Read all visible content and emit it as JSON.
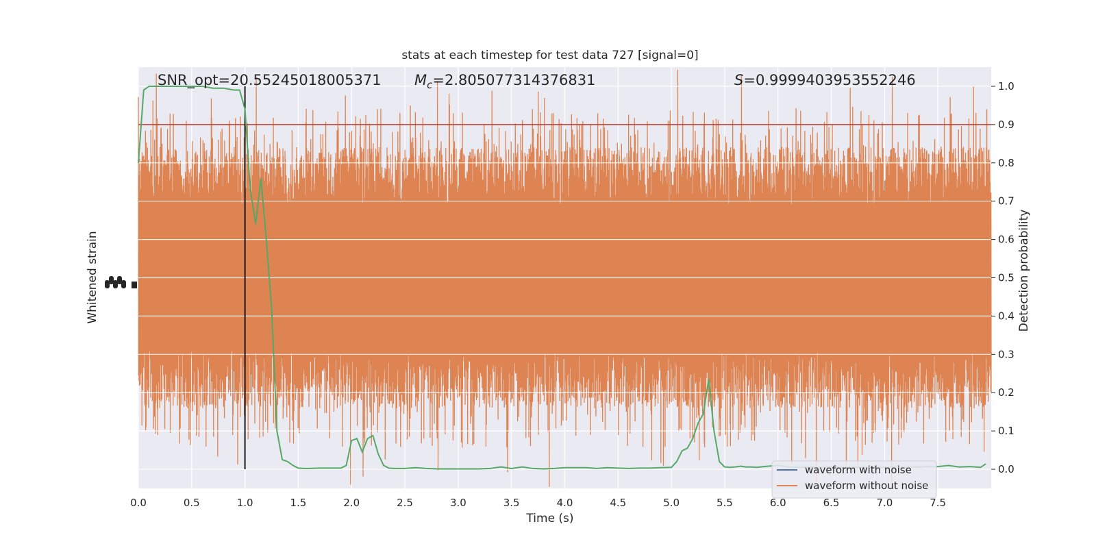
{
  "chart_data": {
    "type": "line",
    "title": "stats at each timestep for test data 727 [signal=0]",
    "xlabel": "Time (s)",
    "ylabel_left": "Whitened strain",
    "ylabel_right": "Detection probability",
    "xlim": [
      0,
      8
    ],
    "ylim_right": [
      -0.05,
      1.05
    ],
    "ylim_left": [
      -1,
      1
    ],
    "x_ticks": [
      0.0,
      0.5,
      1.0,
      1.5,
      2.0,
      2.5,
      3.0,
      3.5,
      4.0,
      4.5,
      5.0,
      5.5,
      6.0,
      6.5,
      7.0,
      7.5
    ],
    "x_tick_labels": [
      "0.0",
      "0.5",
      "1.0",
      "1.5",
      "2.0",
      "2.5",
      "3.0",
      "3.5",
      "4.0",
      "4.5",
      "5.0",
      "5.5",
      "6.0",
      "6.5",
      "7.0",
      "7.5"
    ],
    "y_right_ticks": [
      0.0,
      0.1,
      0.2,
      0.3,
      0.4,
      0.5,
      0.6,
      0.7,
      0.8,
      0.9,
      1.0
    ],
    "y_right_tick_labels": [
      "0.0",
      "0.1",
      "0.2",
      "0.3",
      "0.4",
      "0.5",
      "0.6",
      "0.7",
      "0.8",
      "0.9",
      "1.0"
    ],
    "grid": true,
    "legend_position": "lower-right",
    "annotations": {
      "snr": "SNR_opt=20.55245018005371",
      "mc_symbol": "M",
      "mc_sub": "c",
      "mc_value": "=2.805077314376831",
      "s_symbol": "S",
      "s_value": "=0.9999403953552246"
    },
    "threshold": {
      "y": 0.9,
      "color": "#c0392b"
    },
    "vertical_marker": {
      "x": 1.0,
      "color": "#000000"
    },
    "series": [
      {
        "name": "waveform with noise",
        "color": "#4c72b0",
        "kind": "strain",
        "visible_in_plot": false
      },
      {
        "name": "waveform without noise",
        "color": "#dd8452",
        "kind": "strain",
        "envelope": {
          "typical": 0.62,
          "spike_max": 1.0,
          "samples": 4096
        }
      },
      {
        "name": "detection probability",
        "color": "#55a868",
        "kind": "probability",
        "x": [
          0.0,
          0.05,
          0.1,
          0.15,
          0.2,
          0.3,
          0.4,
          0.5,
          0.6,
          0.7,
          0.8,
          0.9,
          0.95,
          1.0,
          1.05,
          1.1,
          1.15,
          1.2,
          1.25,
          1.3,
          1.35,
          1.4,
          1.45,
          1.5,
          1.55,
          1.6,
          1.7,
          1.8,
          1.9,
          1.95,
          2.0,
          2.05,
          2.1,
          2.15,
          2.2,
          2.25,
          2.3,
          2.35,
          2.4,
          2.45,
          2.5,
          2.6,
          2.7,
          2.8,
          2.9,
          3.0,
          3.1,
          3.2,
          3.3,
          3.4,
          3.5,
          3.6,
          3.7,
          3.8,
          3.9,
          4.0,
          4.1,
          4.2,
          4.3,
          4.4,
          4.5,
          4.6,
          4.7,
          4.8,
          4.9,
          5.0,
          5.05,
          5.1,
          5.15,
          5.2,
          5.25,
          5.3,
          5.35,
          5.4,
          5.45,
          5.5,
          5.55,
          5.6,
          5.65,
          5.7,
          5.75,
          5.8,
          5.9,
          6.0,
          6.1,
          6.2,
          6.3,
          6.4,
          6.5,
          6.6,
          6.7,
          6.8,
          6.9,
          7.0,
          7.1,
          7.2,
          7.3,
          7.4,
          7.5,
          7.6,
          7.7,
          7.8,
          7.9,
          7.95
        ],
        "y": [
          0.8,
          0.99,
          1.0,
          1.0,
          1.0,
          1.0,
          1.0,
          1.0,
          1.0,
          0.995,
          0.995,
          0.99,
          0.99,
          0.94,
          0.73,
          0.64,
          0.76,
          0.6,
          0.42,
          0.1,
          0.025,
          0.02,
          0.01,
          0.003,
          0.002,
          0.002,
          0.003,
          0.003,
          0.003,
          0.01,
          0.075,
          0.08,
          0.045,
          0.08,
          0.088,
          0.04,
          0.01,
          0.003,
          0.002,
          0.002,
          0.002,
          0.004,
          0.002,
          0.001,
          0.001,
          0.001,
          0.001,
          0.001,
          0.002,
          0.006,
          0.002,
          0.006,
          0.002,
          0.001,
          0.002,
          0.004,
          0.004,
          0.004,
          0.002,
          0.004,
          0.003,
          0.002,
          0.003,
          0.003,
          0.004,
          0.005,
          0.02,
          0.048,
          0.055,
          0.08,
          0.12,
          0.145,
          0.235,
          0.1,
          0.02,
          0.006,
          0.005,
          0.006,
          0.008,
          0.006,
          0.006,
          0.005,
          0.008,
          0.01,
          0.006,
          0.005,
          0.006,
          0.005,
          0.006,
          0.005,
          0.005,
          0.005,
          0.005,
          0.005,
          0.006,
          0.005,
          0.006,
          0.007,
          0.007,
          0.01,
          0.006,
          0.007,
          0.005,
          0.014
        ]
      }
    ]
  }
}
